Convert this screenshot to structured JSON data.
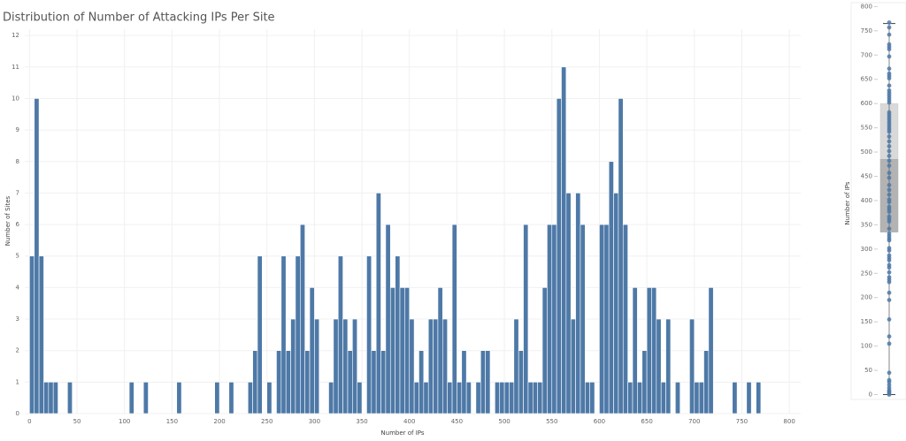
{
  "chart_data": [
    {
      "type": "histogram",
      "title": "Distribution of Number of Attacking IPs Per Site",
      "x_label": "Number of IPs",
      "y_label": "Number of Sites",
      "color": "#4e79a7",
      "grid": true,
      "bins": [
        0,
        5,
        10,
        15,
        20,
        25,
        30,
        35,
        40,
        45,
        50,
        55,
        60,
        65,
        70,
        75,
        80,
        85,
        90,
        95,
        100,
        105,
        110,
        115,
        120,
        125,
        130,
        135,
        140,
        145,
        150,
        155,
        160,
        165,
        170,
        175,
        180,
        185,
        190,
        195,
        200,
        205,
        210,
        215,
        220,
        225,
        230,
        235,
        240,
        245,
        250,
        255,
        260,
        265,
        270,
        275,
        280,
        285,
        290,
        295,
        300,
        305,
        310,
        315,
        320,
        325,
        330,
        335,
        340,
        345,
        350,
        355,
        360,
        365,
        370,
        375,
        380,
        385,
        390,
        395,
        400,
        405,
        410,
        415,
        420,
        425,
        430,
        435,
        440,
        445,
        450,
        455,
        460,
        465,
        470,
        475,
        480,
        485,
        490,
        495,
        500,
        505,
        510,
        515,
        520,
        525,
        530,
        535,
        540,
        545,
        550,
        555,
        560,
        565,
        570,
        575,
        580,
        585,
        590,
        595,
        600,
        605,
        610,
        615,
        620,
        625,
        630,
        635,
        640,
        645,
        650,
        655,
        660,
        665,
        670,
        675,
        680,
        685,
        690,
        695,
        700,
        705,
        710,
        715,
        720,
        725,
        730,
        735,
        740,
        745,
        750,
        755,
        760,
        765,
        770
      ],
      "values": [
        5,
        10,
        5,
        1,
        1,
        1,
        0,
        0,
        1,
        0,
        0,
        0,
        0,
        0,
        0,
        0,
        0,
        0,
        0,
        0,
        0,
        1,
        0,
        0,
        1,
        0,
        0,
        0,
        0,
        0,
        0,
        1,
        0,
        0,
        0,
        0,
        0,
        0,
        0,
        1,
        0,
        0,
        1,
        0,
        0,
        0,
        1,
        2,
        5,
        0,
        1,
        0,
        2,
        5,
        2,
        3,
        5,
        6,
        2,
        4,
        3,
        0,
        0,
        1,
        3,
        5,
        3,
        2,
        3,
        1,
        0,
        5,
        2,
        7,
        2,
        6,
        4,
        5,
        4,
        4,
        3,
        1,
        2,
        1,
        3,
        3,
        4,
        3,
        1,
        6,
        1,
        2,
        1,
        0,
        1,
        2,
        2,
        0,
        1,
        1,
        1,
        1,
        3,
        2,
        6,
        1,
        1,
        1,
        4,
        6,
        6,
        10,
        11,
        7,
        3,
        7,
        6,
        1,
        1,
        0,
        6,
        6,
        8,
        7,
        10,
        6,
        1,
        4,
        1,
        2,
        4,
        4,
        3,
        1,
        3,
        0,
        1,
        0,
        0,
        3,
        1,
        1,
        2,
        4,
        0,
        0,
        0,
        0,
        1,
        0,
        0,
        1,
        0,
        1
      ],
      "xlim": [
        -5,
        812
      ],
      "xticks": [
        0,
        50,
        100,
        150,
        200,
        250,
        300,
        350,
        400,
        450,
        500,
        550,
        600,
        650,
        700,
        750,
        800
      ],
      "ylim": [
        0,
        12.2
      ],
      "yticks": [
        0,
        1,
        2,
        3,
        4,
        5,
        6,
        7,
        8,
        9,
        10,
        11,
        12
      ]
    },
    {
      "type": "box",
      "y_label": "Number of IPs",
      "color": "#4e79a7",
      "q1": 335,
      "median": 485,
      "q3": 600,
      "whisker_low": 0,
      "whisker_high": 765,
      "box_upper_color": "#d9d9d9",
      "box_lower_color": "#b3b3b3",
      "points": [
        0,
        3,
        6,
        9,
        14,
        20,
        26,
        30,
        45,
        105,
        120,
        155,
        195,
        210,
        232,
        237,
        242,
        252,
        262,
        267,
        277,
        282,
        287,
        297,
        302,
        318,
        322,
        327,
        332,
        342,
        357,
        362,
        367,
        377,
        382,
        387,
        397,
        402,
        412,
        422,
        432,
        447,
        457,
        472,
        482,
        492,
        502,
        512,
        522,
        532,
        542,
        547,
        552,
        557,
        562,
        567,
        572,
        577,
        582,
        602,
        607,
        612,
        617,
        622,
        627,
        637,
        652,
        657,
        662,
        672,
        697,
        712,
        717,
        722,
        742,
        757,
        767
      ],
      "ylim": [
        -10,
        808
      ],
      "yticks": [
        0,
        50,
        100,
        150,
        200,
        250,
        300,
        350,
        400,
        450,
        500,
        550,
        600,
        650,
        700,
        750,
        800
      ]
    }
  ]
}
